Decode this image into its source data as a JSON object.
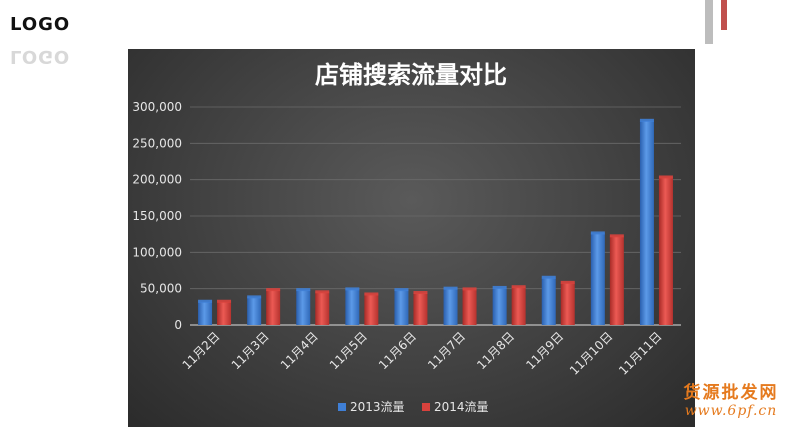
{
  "logo": {
    "text": "LOGO",
    "reflection": "LOGO"
  },
  "watermark": {
    "title": "货源批发网",
    "url": "www.6pf.cn"
  },
  "colors": {
    "series_2013": "#3f7fd6",
    "series_2014": "#d9423d",
    "accent_red": "#c0504d",
    "panel_bg": "#404040"
  },
  "chart_data": {
    "type": "bar",
    "title": "店铺搜索流量对比",
    "xlabel": "",
    "ylabel": "",
    "categories": [
      "11月2日",
      "11月3日",
      "11月4日",
      "11月5日",
      "11月6日",
      "11月7日",
      "11月8日",
      "11月9日",
      "11月10日",
      "11月11日"
    ],
    "series": [
      {
        "name": "2013流量",
        "values": [
          32000,
          38000,
          48000,
          49000,
          48000,
          50000,
          51000,
          65000,
          126000,
          281000
        ]
      },
      {
        "name": "2014流量",
        "values": [
          32000,
          48000,
          45000,
          42000,
          44000,
          49000,
          52000,
          58000,
          122000,
          203000
        ]
      }
    ],
    "ylim": [
      0,
      300000
    ],
    "yticks": [
      "0",
      "50,000",
      "100,000",
      "150,000",
      "200,000",
      "250,000",
      "300,000"
    ],
    "grid": true,
    "legend": "bottom"
  }
}
